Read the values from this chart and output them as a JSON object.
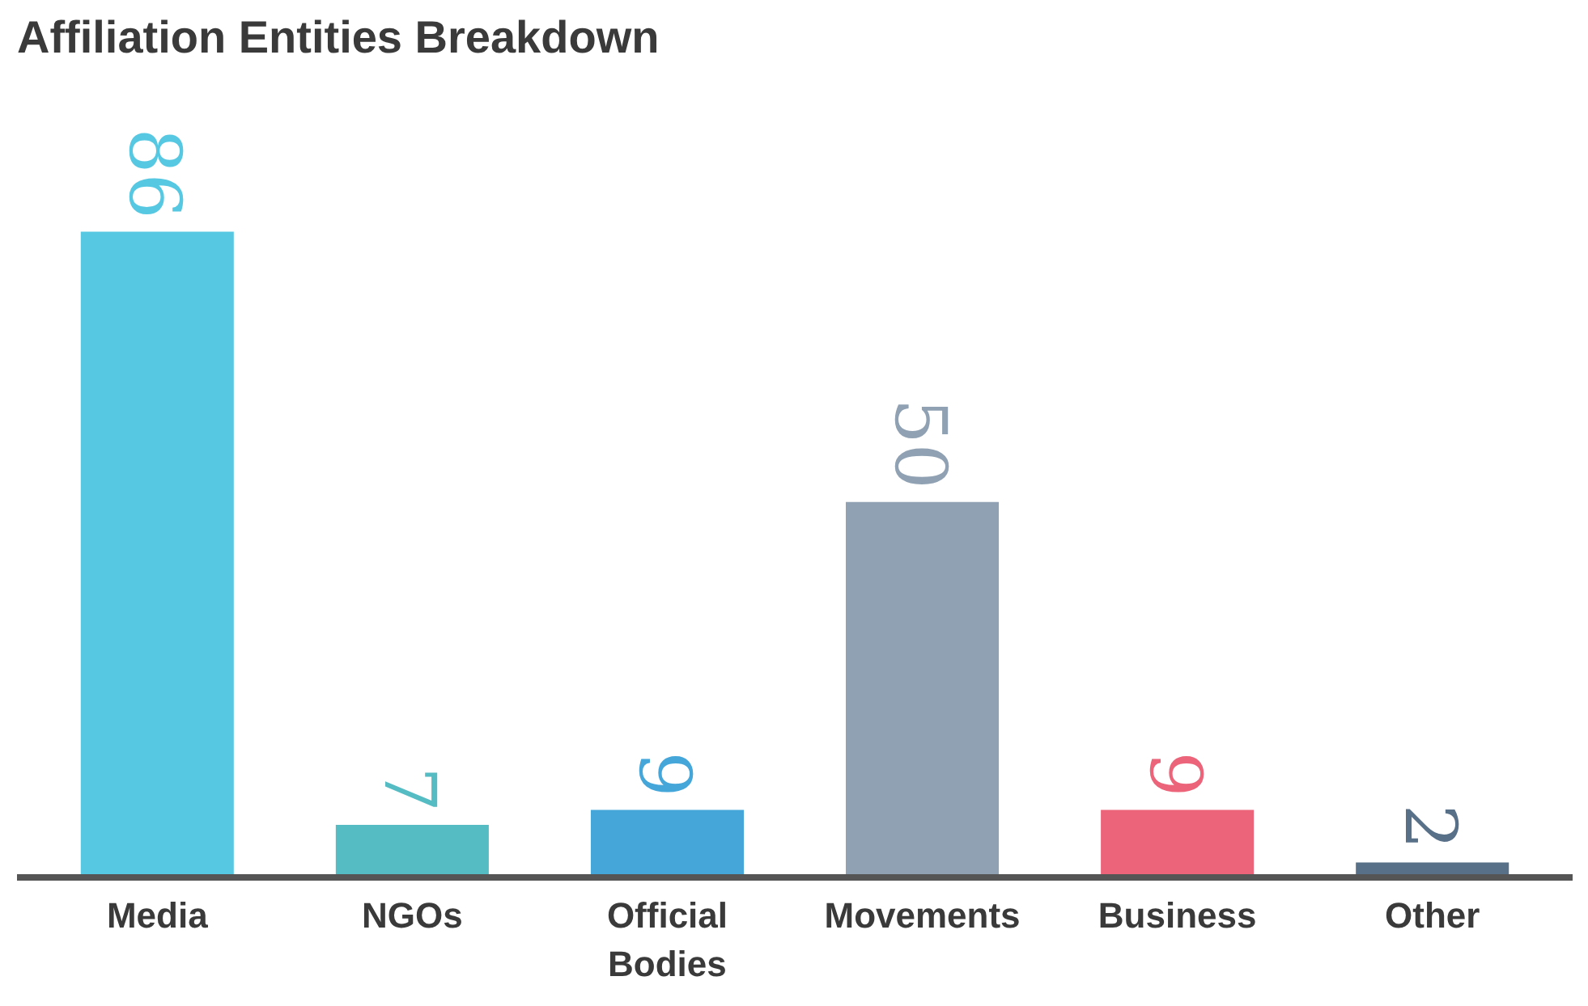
{
  "chart_data": {
    "type": "bar",
    "title": "Affiliation Entities Breakdown",
    "categories": [
      "Media",
      "NGOs",
      "Official Bodies",
      "Movements",
      "Business",
      "Other"
    ],
    "values": [
      86,
      7,
      9,
      50,
      9,
      2
    ],
    "data_labels": true,
    "colors": [
      "#56c8e2",
      "#56bcc4",
      "#45a6da",
      "#8fa1b2",
      "#ec6479",
      "#587088"
    ],
    "grid": false
  }
}
